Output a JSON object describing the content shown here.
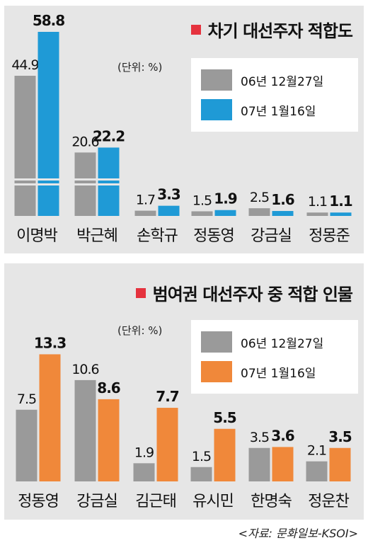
{
  "colors": {
    "gray": "#9a9a9a",
    "blue": "#1f9ad6",
    "orange": "#f0883a",
    "accent_red": "#e5323e"
  },
  "source": "<자료: 문화일보-KSOI>",
  "chart_data": [
    {
      "type": "bar",
      "title": "차기 대선주자 적합도",
      "unit": "(단위: %)",
      "categories": [
        "이명박",
        "박근혜",
        "손학규",
        "정동영",
        "강금실",
        "정몽준"
      ],
      "series": [
        {
          "name": "06년 12월27일",
          "values": [
            44.9,
            20.6,
            1.7,
            1.5,
            2.5,
            1.1
          ]
        },
        {
          "name": "07년 1월16일",
          "values": [
            58.8,
            22.2,
            3.3,
            1.9,
            1.6,
            1.1
          ]
        }
      ],
      "broken_axis": true
    },
    {
      "type": "bar",
      "title": "범여권 대선주자 중 적합 인물",
      "unit": "(단위: %)",
      "categories": [
        "정동영",
        "강금실",
        "김근태",
        "유시민",
        "한명숙",
        "정운찬"
      ],
      "series": [
        {
          "name": "06년 12월27일",
          "values": [
            7.5,
            10.6,
            1.9,
            1.5,
            3.5,
            2.1
          ]
        },
        {
          "name": "07년 1월16일",
          "values": [
            13.3,
            8.6,
            7.7,
            5.5,
            3.6,
            3.5
          ]
        }
      ]
    }
  ]
}
